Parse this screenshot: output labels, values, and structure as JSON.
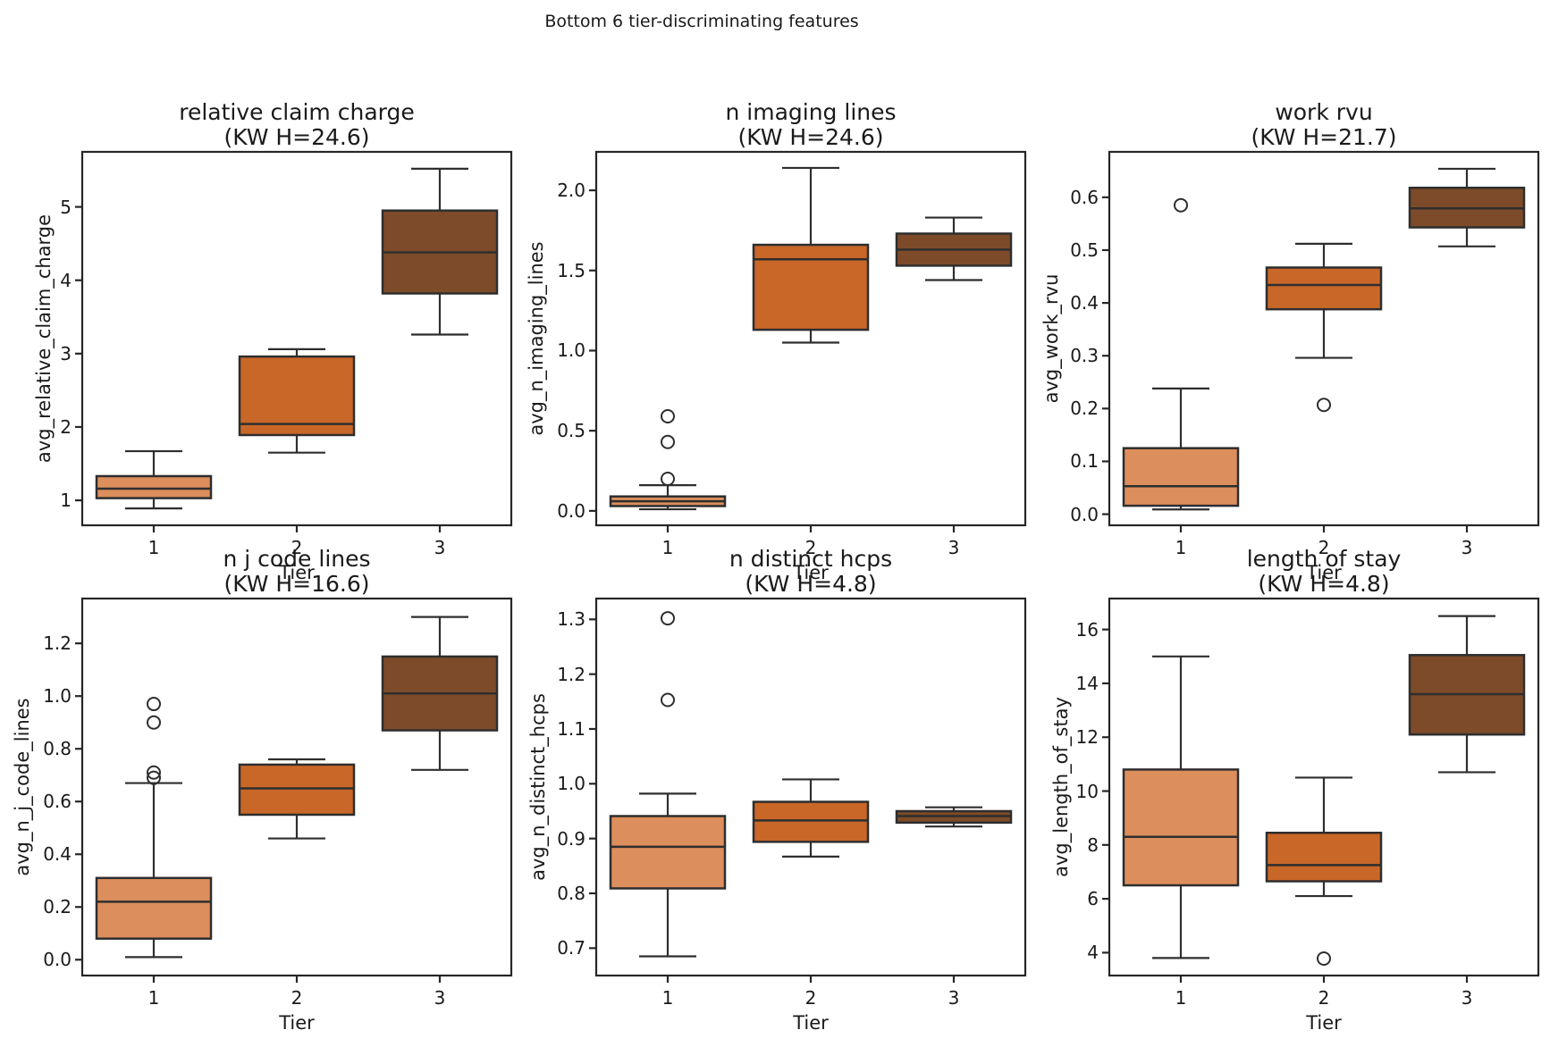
{
  "figure": {
    "suptitle": "Bottom 6 tier-discriminating features",
    "background": "#ffffff",
    "text_color": "#1a1a1a",
    "line_color": "#2e2e2e",
    "spine_color": "#262626",
    "box_colors": [
      "#DC8E5C",
      "#C96728",
      "#7D4B29"
    ],
    "xlabel": "Tier"
  },
  "chart_data": [
    {
      "type": "boxplot",
      "title": "relative claim charge",
      "subtitle": "(KW H=24.6)",
      "kw_h": 24.6,
      "xlabel": "Tier",
      "ylabel": "avg_relative_claim_charge",
      "categories": [
        "1",
        "2",
        "3"
      ],
      "ylim": [
        0.66,
        5.75
      ],
      "yticks": [
        1,
        2,
        3,
        4,
        5
      ],
      "ytick_labels": [
        "1",
        "2",
        "3",
        "4",
        "5"
      ],
      "boxes": [
        {
          "whislo": 0.89,
          "q1": 1.03,
          "med": 1.16,
          "q3": 1.33,
          "whishi": 1.67,
          "outliers": []
        },
        {
          "whislo": 1.65,
          "q1": 1.89,
          "med": 2.04,
          "q3": 2.96,
          "whishi": 3.06,
          "outliers": []
        },
        {
          "whislo": 3.26,
          "q1": 3.82,
          "med": 4.38,
          "q3": 4.95,
          "whishi": 5.52,
          "outliers": []
        }
      ]
    },
    {
      "type": "boxplot",
      "title": "n imaging lines",
      "subtitle": "(KW H=24.6)",
      "kw_h": 24.6,
      "xlabel": "Tier",
      "ylabel": "avg_n_imaging_lines",
      "categories": [
        "1",
        "2",
        "3"
      ],
      "ylim": [
        -0.09,
        2.24
      ],
      "yticks": [
        0.0,
        0.5,
        1.0,
        1.5,
        2.0
      ],
      "ytick_labels": [
        "0.0",
        "0.5",
        "1.0",
        "1.5",
        "2.0"
      ],
      "boxes": [
        {
          "whislo": 0.01,
          "q1": 0.03,
          "med": 0.06,
          "q3": 0.09,
          "whishi": 0.16,
          "outliers": [
            0.2,
            0.43,
            0.59
          ]
        },
        {
          "whislo": 1.05,
          "q1": 1.13,
          "med": 1.57,
          "q3": 1.66,
          "whishi": 2.14,
          "outliers": []
        },
        {
          "whislo": 1.44,
          "q1": 1.53,
          "med": 1.63,
          "q3": 1.73,
          "whishi": 1.83,
          "outliers": []
        }
      ]
    },
    {
      "type": "boxplot",
      "title": "work rvu",
      "subtitle": "(KW H=21.7)",
      "kw_h": 21.7,
      "xlabel": "Tier",
      "ylabel": "avg_work_rvu",
      "categories": [
        "1",
        "2",
        "3"
      ],
      "ylim": [
        -0.021,
        0.686
      ],
      "yticks": [
        0.0,
        0.1,
        0.2,
        0.3,
        0.4,
        0.5,
        0.6
      ],
      "ytick_labels": [
        "0.0",
        "0.1",
        "0.2",
        "0.3",
        "0.4",
        "0.5",
        "0.6"
      ],
      "boxes": [
        {
          "whislo": 0.009,
          "q1": 0.016,
          "med": 0.053,
          "q3": 0.125,
          "whishi": 0.238,
          "outliers": [
            0.585
          ]
        },
        {
          "whislo": 0.296,
          "q1": 0.388,
          "med": 0.434,
          "q3": 0.467,
          "whishi": 0.512,
          "outliers": [
            0.207
          ]
        },
        {
          "whislo": 0.507,
          "q1": 0.543,
          "med": 0.579,
          "q3": 0.618,
          "whishi": 0.654,
          "outliers": []
        }
      ]
    },
    {
      "type": "boxplot",
      "title": "n j code lines",
      "subtitle": "(KW H=16.6)",
      "kw_h": 16.6,
      "xlabel": "Tier",
      "ylabel": "avg_n_j_code_lines",
      "categories": [
        "1",
        "2",
        "3"
      ],
      "ylim": [
        -0.06,
        1.37
      ],
      "yticks": [
        0.0,
        0.2,
        0.4,
        0.6,
        0.8,
        1.0,
        1.2
      ],
      "ytick_labels": [
        "0.0",
        "0.2",
        "0.4",
        "0.6",
        "0.8",
        "1.0",
        "1.2"
      ],
      "boxes": [
        {
          "whislo": 0.01,
          "q1": 0.08,
          "med": 0.22,
          "q3": 0.31,
          "whishi": 0.67,
          "outliers": [
            0.69,
            0.71,
            0.9,
            0.97
          ]
        },
        {
          "whislo": 0.46,
          "q1": 0.55,
          "med": 0.65,
          "q3": 0.74,
          "whishi": 0.76,
          "outliers": []
        },
        {
          "whislo": 0.72,
          "q1": 0.87,
          "med": 1.01,
          "q3": 1.15,
          "whishi": 1.3,
          "outliers": []
        }
      ]
    },
    {
      "type": "boxplot",
      "title": "n distinct hcps",
      "subtitle": "(KW H=4.8)",
      "kw_h": 4.8,
      "xlabel": "Tier",
      "ylabel": "avg_n_distinct_hcps",
      "categories": [
        "1",
        "2",
        "3"
      ],
      "ylim": [
        0.65,
        1.338
      ],
      "yticks": [
        0.7,
        0.8,
        0.9,
        1.0,
        1.1,
        1.2,
        1.3
      ],
      "ytick_labels": [
        "0.7",
        "0.8",
        "0.9",
        "1.0",
        "1.1",
        "1.2",
        "1.3"
      ],
      "boxes": [
        {
          "whislo": 0.685,
          "q1": 0.809,
          "med": 0.885,
          "q3": 0.941,
          "whishi": 0.982,
          "outliers": [
            1.153,
            1.302
          ]
        },
        {
          "whislo": 0.867,
          "q1": 0.894,
          "med": 0.933,
          "q3": 0.967,
          "whishi": 1.008,
          "outliers": []
        },
        {
          "whislo": 0.922,
          "q1": 0.929,
          "med": 0.941,
          "q3": 0.95,
          "whishi": 0.957,
          "outliers": []
        }
      ]
    },
    {
      "type": "boxplot",
      "title": "length of stay",
      "subtitle": "(KW H=4.8)",
      "kw_h": 4.8,
      "xlabel": "Tier",
      "ylabel": "avg_length_of_stay",
      "categories": [
        "1",
        "2",
        "3"
      ],
      "ylim": [
        3.15,
        17.15
      ],
      "yticks": [
        4,
        6,
        8,
        10,
        12,
        14,
        16
      ],
      "ytick_labels": [
        "4",
        "6",
        "8",
        "10",
        "12",
        "14",
        "16"
      ],
      "boxes": [
        {
          "whislo": 3.8,
          "q1": 6.5,
          "med": 8.3,
          "q3": 10.8,
          "whishi": 15.0,
          "outliers": []
        },
        {
          "whislo": 6.1,
          "q1": 6.65,
          "med": 7.25,
          "q3": 8.45,
          "whishi": 10.5,
          "outliers": [
            3.78
          ]
        },
        {
          "whislo": 10.7,
          "q1": 12.1,
          "med": 13.6,
          "q3": 15.05,
          "whishi": 16.5,
          "outliers": []
        }
      ]
    }
  ]
}
